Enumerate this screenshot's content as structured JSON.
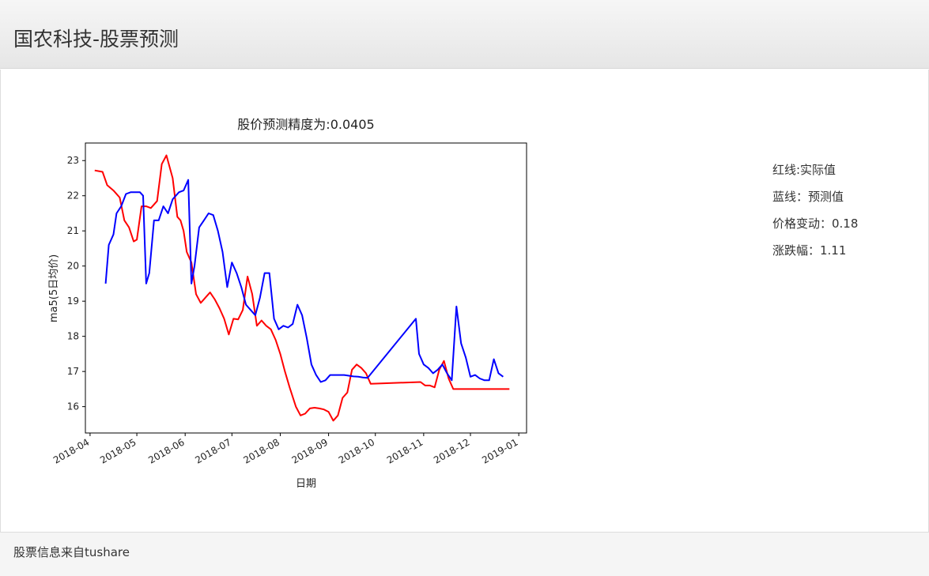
{
  "header": {
    "title": "国农科技-股票预测"
  },
  "info": {
    "red_line": "红线:实际值",
    "blue_line": "蓝线：预测值",
    "price_change": "价格变动：0.18",
    "change_pct": "涨跌幅：1.11"
  },
  "footer": {
    "source": "股票信息来自tushare"
  },
  "chart_data": {
    "type": "line",
    "title": "股价预测精度为:0.0405",
    "xlabel": "日期",
    "ylabel": "ma5(5日均价)",
    "x_tick_labels": [
      "2018-04",
      "2018-05",
      "2018-06",
      "2018-07",
      "2018-08",
      "2018-09",
      "2018-10",
      "2018-11",
      "2018-12",
      "2019-01"
    ],
    "y_ticks": [
      16,
      17,
      18,
      19,
      20,
      21,
      22,
      23
    ],
    "xlim": [
      "2018-03-29",
      "2019-01-06"
    ],
    "ylim": [
      15.25,
      23.5
    ],
    "series": [
      {
        "color": "#ff0000",
        "x": [
          "2018-04-04",
          "2018-04-09",
          "2018-04-12",
          "2018-04-16",
          "2018-04-20",
          "2018-04-23",
          "2018-04-26",
          "2018-04-29",
          "2018-05-01",
          "2018-05-04",
          "2018-05-07",
          "2018-05-10",
          "2018-05-14",
          "2018-05-17",
          "2018-05-20",
          "2018-05-24",
          "2018-05-27",
          "2018-05-29",
          "2018-05-31",
          "2018-06-02",
          "2018-06-05",
          "2018-06-08",
          "2018-06-11",
          "2018-06-14",
          "2018-06-17",
          "2018-06-20",
          "2018-06-23",
          "2018-06-26",
          "2018-06-29",
          "2018-07-02",
          "2018-07-05",
          "2018-07-08",
          "2018-07-11",
          "2018-07-14",
          "2018-07-17",
          "2018-07-20",
          "2018-07-23",
          "2018-07-26",
          "2018-07-29",
          "2018-08-01",
          "2018-08-04",
          "2018-08-07",
          "2018-08-11",
          "2018-08-14",
          "2018-08-17",
          "2018-08-20",
          "2018-08-23",
          "2018-08-26",
          "2018-08-29",
          "2018-09-01",
          "2018-09-04",
          "2018-09-07",
          "2018-09-10",
          "2018-09-13",
          "2018-09-16",
          "2018-09-19",
          "2018-09-22",
          "2018-09-25",
          "2018-09-28",
          "2018-10-30",
          "2018-11-02",
          "2018-11-05",
          "2018-11-08",
          "2018-11-11",
          "2018-11-14",
          "2018-11-17",
          "2018-11-20",
          "2018-11-23",
          "2018-11-26",
          "2018-11-29",
          "2018-12-02",
          "2018-12-05",
          "2018-12-08",
          "2018-12-11",
          "2018-12-14",
          "2018-12-17",
          "2018-12-20",
          "2018-12-23",
          "2018-12-26"
        ],
        "values": [
          22.72,
          22.68,
          22.3,
          22.15,
          21.95,
          21.3,
          21.1,
          20.7,
          20.75,
          21.7,
          21.7,
          21.65,
          21.85,
          22.9,
          23.15,
          22.5,
          21.4,
          21.3,
          21.0,
          20.4,
          20.1,
          19.2,
          18.95,
          19.1,
          19.25,
          19.05,
          18.8,
          18.5,
          18.05,
          18.5,
          18.48,
          18.75,
          19.7,
          19.2,
          18.3,
          18.45,
          18.3,
          18.2,
          17.9,
          17.5,
          17.0,
          16.55,
          16.0,
          15.75,
          15.8,
          15.95,
          15.97,
          15.95,
          15.92,
          15.85,
          15.6,
          15.75,
          16.25,
          16.4,
          17.05,
          17.2,
          17.1,
          16.95,
          16.65,
          16.7,
          16.6,
          16.6,
          16.55,
          17.05,
          17.3,
          16.8,
          16.5,
          16.5,
          16.5,
          16.5,
          16.5,
          16.5,
          16.5,
          16.5,
          16.5,
          16.5,
          16.5,
          16.5,
          16.5
        ]
      },
      {
        "color": "#0000ff",
        "x": [
          "2018-04-11",
          "2018-04-13",
          "2018-04-16",
          "2018-04-18",
          "2018-04-21",
          "2018-04-24",
          "2018-04-27",
          "2018-04-30",
          "2018-05-03",
          "2018-05-05",
          "2018-05-07",
          "2018-05-09",
          "2018-05-12",
          "2018-05-15",
          "2018-05-18",
          "2018-05-21",
          "2018-05-24",
          "2018-05-28",
          "2018-05-31",
          "2018-06-03",
          "2018-06-05",
          "2018-06-07",
          "2018-06-10",
          "2018-06-13",
          "2018-06-16",
          "2018-06-19",
          "2018-06-22",
          "2018-06-25",
          "2018-06-28",
          "2018-07-01",
          "2018-07-04",
          "2018-07-07",
          "2018-07-10",
          "2018-07-13",
          "2018-07-16",
          "2018-07-19",
          "2018-07-22",
          "2018-07-25",
          "2018-07-28",
          "2018-07-31",
          "2018-08-03",
          "2018-08-06",
          "2018-08-09",
          "2018-08-12",
          "2018-08-15",
          "2018-08-18",
          "2018-08-21",
          "2018-08-24",
          "2018-08-27",
          "2018-08-30",
          "2018-09-02",
          "2018-09-05",
          "2018-09-08",
          "2018-09-11",
          "2018-09-14",
          "2018-09-17",
          "2018-09-20",
          "2018-09-23",
          "2018-09-26",
          "2018-10-27",
          "2018-10-29",
          "2018-11-01",
          "2018-11-04",
          "2018-11-07",
          "2018-11-10",
          "2018-11-13",
          "2018-11-16",
          "2018-11-19",
          "2018-11-22",
          "2018-11-25",
          "2018-11-28",
          "2018-12-01",
          "2018-12-04",
          "2018-12-07",
          "2018-12-10",
          "2018-12-13",
          "2018-12-16",
          "2018-12-19",
          "2018-12-22"
        ],
        "values": [
          19.5,
          20.6,
          20.9,
          21.5,
          21.7,
          22.05,
          22.1,
          22.1,
          22.1,
          22.0,
          19.5,
          19.8,
          21.3,
          21.3,
          21.7,
          21.5,
          21.9,
          22.1,
          22.15,
          22.45,
          19.5,
          20.0,
          21.1,
          21.3,
          21.5,
          21.45,
          21.0,
          20.4,
          19.4,
          20.1,
          19.8,
          19.4,
          18.9,
          18.75,
          18.6,
          19.1,
          19.8,
          19.8,
          18.5,
          18.2,
          18.3,
          18.25,
          18.35,
          18.9,
          18.6,
          17.95,
          17.2,
          16.9,
          16.7,
          16.75,
          16.9,
          16.9,
          16.9,
          16.9,
          16.88,
          16.86,
          16.85,
          16.83,
          16.82,
          18.5,
          17.5,
          17.2,
          17.1,
          16.95,
          17.05,
          17.2,
          16.95,
          16.75,
          18.85,
          17.8,
          17.4,
          16.85,
          16.9,
          16.8,
          16.75,
          16.75,
          17.35,
          16.95,
          16.85
        ]
      }
    ]
  }
}
